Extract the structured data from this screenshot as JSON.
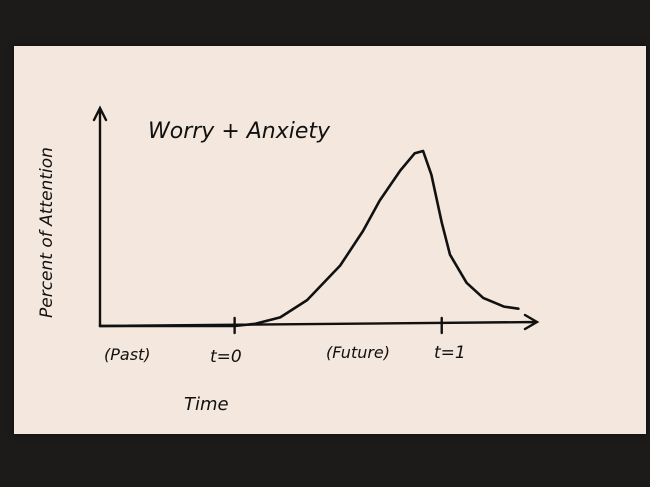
{
  "chart_data": {
    "type": "line",
    "title": "Worry + Anxiety",
    "xlabel": "Time",
    "ylabel": "Percent of Attention",
    "x_annotations": [
      "(Past)",
      "(Future)"
    ],
    "x_ticks": [
      {
        "label": "t=0",
        "value": 0
      },
      {
        "label": "t=1",
        "value": 1
      }
    ],
    "xlim": [
      -0.65,
      1.46
    ],
    "ylim": [
      0,
      100
    ],
    "grid": false,
    "series": [
      {
        "x": [
          -0.65,
          0,
          0.1,
          0.22,
          0.35,
          0.51,
          0.62,
          0.7,
          0.8,
          0.87,
          0.91,
          0.95,
          1.0,
          1.04,
          1.12,
          1.2,
          1.3,
          1.37
        ],
        "y": [
          0,
          0,
          1,
          4,
          12,
          28,
          44,
          58,
          72,
          80,
          81,
          70,
          48,
          33,
          20,
          13,
          9,
          8
        ]
      }
    ]
  }
}
